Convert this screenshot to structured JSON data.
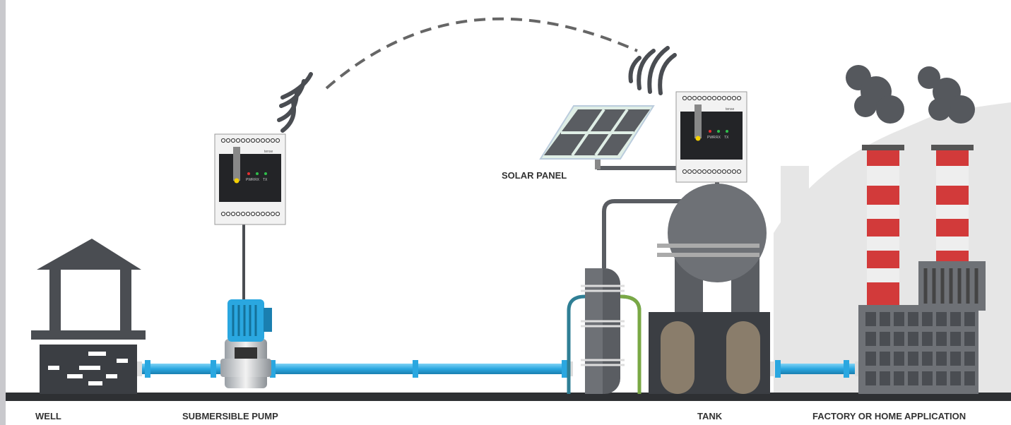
{
  "labels": {
    "well": "WELL",
    "pump": "SUBMERSIBLE PUMP",
    "tank": "TANK",
    "factory": "FACTORY OR HOME APPLICATION",
    "solar": "SOLAR PANEL"
  },
  "devices": [
    {
      "brand": "tense",
      "leds": [
        "PWR",
        "RX",
        "TX"
      ]
    },
    {
      "brand": "tense",
      "leds": [
        "PWR",
        "RX",
        "TX"
      ]
    }
  ]
}
